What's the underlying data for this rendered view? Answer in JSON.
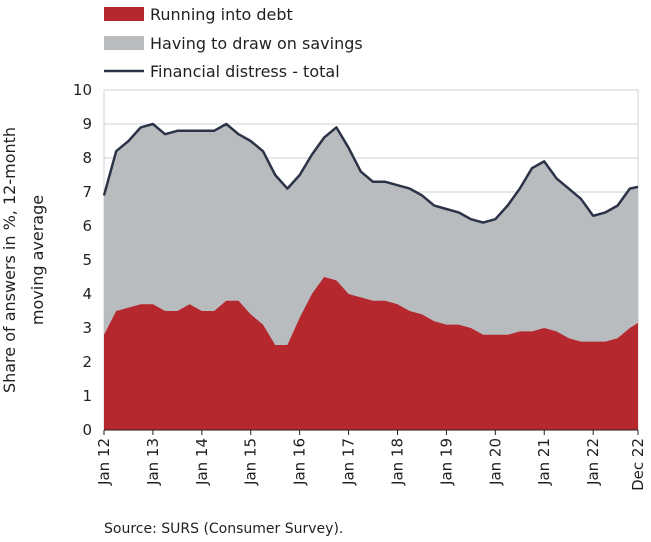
{
  "chart_data": {
    "type": "area",
    "ylabel": "Share of answers in %, 12-month moving average",
    "ylim": [
      0,
      10
    ],
    "yticks": [
      "0",
      "1",
      "2",
      "3",
      "4",
      "5",
      "6",
      "7",
      "8",
      "9",
      "10"
    ],
    "x_start": "2012-01",
    "x_end": "2022-12",
    "x_tick_labels": [
      "Jan 12",
      "Jan 13",
      "Jan 14",
      "Jan 15",
      "Jan 16",
      "Jan 17",
      "Jan 18",
      "Jan 19",
      "Jan 20",
      "Jan 21",
      "Jan 22",
      "Dec 22"
    ],
    "grid": true,
    "legend_position": "top-left",
    "series": [
      {
        "name": "Running into debt",
        "kind": "area",
        "color": "#b5282e"
      },
      {
        "name": "Having to draw on savings",
        "kind": "area",
        "color": "#b9bcbf"
      },
      {
        "name": "Financial distress - total",
        "kind": "line",
        "color": "#2b3447"
      }
    ],
    "x": [
      "2012-01",
      "2012-04",
      "2012-07",
      "2012-10",
      "2013-01",
      "2013-04",
      "2013-07",
      "2013-10",
      "2014-01",
      "2014-04",
      "2014-07",
      "2014-10",
      "2015-01",
      "2015-04",
      "2015-07",
      "2015-10",
      "2016-01",
      "2016-04",
      "2016-07",
      "2016-10",
      "2017-01",
      "2017-04",
      "2017-07",
      "2017-10",
      "2018-01",
      "2018-04",
      "2018-07",
      "2018-10",
      "2019-01",
      "2019-04",
      "2019-07",
      "2019-10",
      "2020-01",
      "2020-04",
      "2020-07",
      "2020-10",
      "2021-01",
      "2021-04",
      "2021-07",
      "2021-10",
      "2022-01",
      "2022-04",
      "2022-07",
      "2022-10",
      "2022-12"
    ],
    "debt": [
      2.8,
      3.5,
      3.6,
      3.7,
      3.7,
      3.5,
      3.5,
      3.7,
      3.5,
      3.5,
      3.8,
      3.8,
      3.4,
      3.1,
      2.5,
      2.5,
      3.3,
      4.0,
      4.5,
      4.4,
      4.0,
      3.9,
      3.8,
      3.8,
      3.7,
      3.5,
      3.4,
      3.2,
      3.1,
      3.1,
      3.0,
      2.8,
      2.8,
      2.8,
      2.9,
      2.9,
      3.0,
      2.9,
      2.7,
      2.6,
      2.6,
      2.6,
      2.7,
      3.0,
      3.15
    ],
    "total": [
      6.9,
      8.2,
      8.5,
      8.9,
      9.0,
      8.7,
      8.8,
      8.8,
      8.8,
      8.8,
      9.0,
      8.7,
      8.5,
      8.2,
      7.5,
      7.1,
      7.5,
      8.1,
      8.6,
      8.9,
      8.3,
      7.6,
      7.3,
      7.3,
      7.2,
      7.1,
      6.9,
      6.6,
      6.5,
      6.4,
      6.2,
      6.1,
      6.2,
      6.6,
      7.1,
      7.7,
      7.9,
      7.4,
      7.1,
      6.8,
      6.3,
      6.4,
      6.6,
      7.1,
      7.15
    ]
  },
  "legend": [
    {
      "label": "Running into debt",
      "swatch": "area",
      "color": "#b5282e"
    },
    {
      "label": "Having to draw on savings",
      "swatch": "area",
      "color": "#b9bcbf"
    },
    {
      "label": "Financial distress - total",
      "swatch": "line",
      "color": "#2b3447"
    }
  ],
  "source": "Source: SURS (Consumer Survey)."
}
